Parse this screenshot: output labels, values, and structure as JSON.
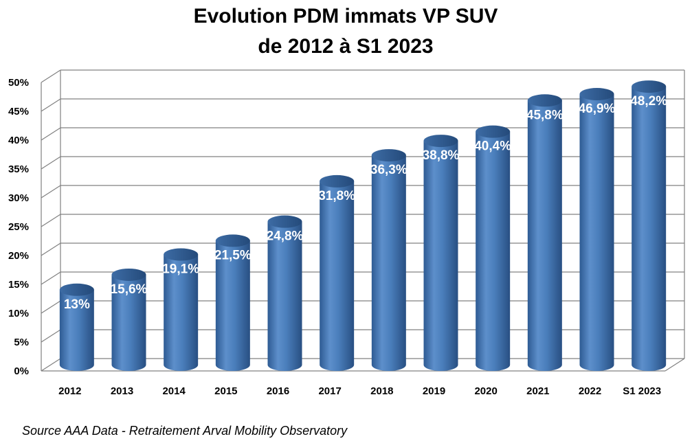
{
  "chart_data": {
    "type": "bar",
    "title_lines": [
      "Evolution PDM immats VP SUV",
      "de 2012 à S1 2023"
    ],
    "categories": [
      "2012",
      "2013",
      "2014",
      "2015",
      "2016",
      "2017",
      "2018",
      "2019",
      "2020",
      "2021",
      "2022",
      "S1 2023"
    ],
    "values": [
      13,
      15.6,
      19.1,
      21.5,
      24.8,
      31.8,
      36.3,
      38.8,
      40.4,
      45.8,
      46.9,
      48.2
    ],
    "data_labels": [
      "13%",
      "15,6%",
      "19,1%",
      "21,5%",
      "24,8%",
      "31,8%",
      "36,3%",
      "38,8%",
      "40,4%",
      "45,8%",
      "46,9%",
      "48,2%"
    ],
    "y_ticks": [
      "0%",
      "5%",
      "10%",
      "15%",
      "20%",
      "25%",
      "30%",
      "35%",
      "40%",
      "45%",
      "50%"
    ],
    "ylim": [
      0,
      50
    ],
    "xlabel": "",
    "ylabel": "",
    "grid": true,
    "bar_color": "#4A7EBB",
    "source": "Source AAA Data - Retraitement Arval Mobility Observatory"
  }
}
